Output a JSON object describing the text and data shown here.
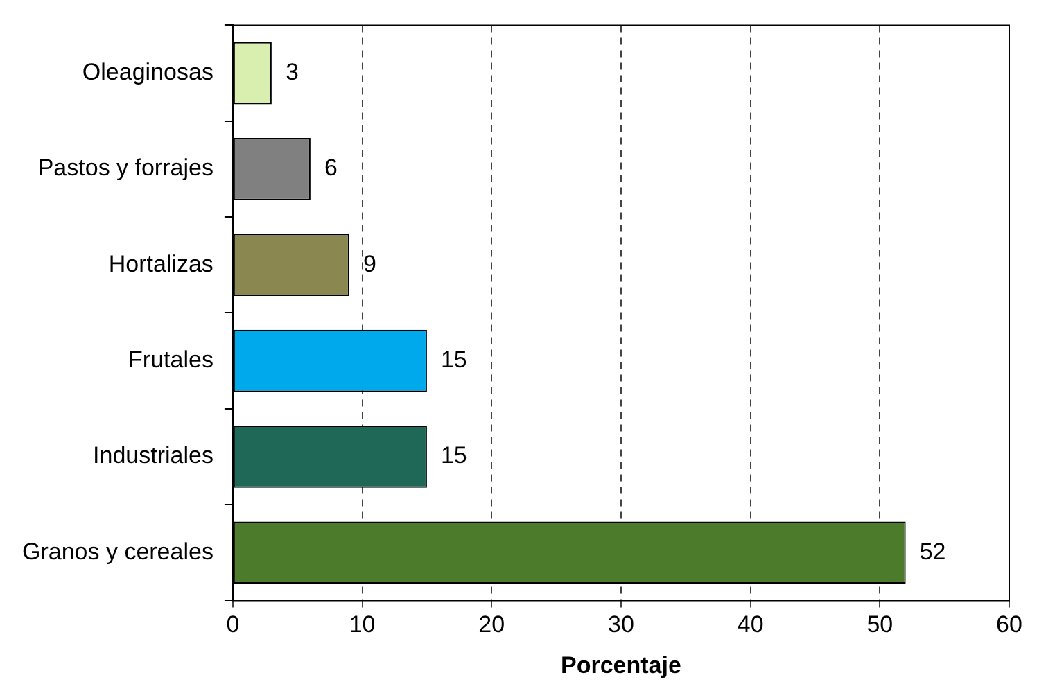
{
  "chart_data": {
    "type": "bar",
    "orientation": "horizontal",
    "xlabel": "Porcentaje",
    "categories": [
      "Oleaginosas",
      "Pastos y forrajes",
      "Hortalizas",
      "Frutales",
      "Industriales",
      "Granos y cereales"
    ],
    "values": [
      3,
      6,
      9,
      15,
      15,
      52
    ],
    "colors": [
      "#d8efb0",
      "#808080",
      "#8b8750",
      "#00a8ec",
      "#1f6857",
      "#4b7b2b"
    ],
    "xlim": [
      0,
      60
    ],
    "xticks": [
      0,
      10,
      20,
      30,
      40,
      50,
      60
    ],
    "grid": "x",
    "data_labels": true
  }
}
